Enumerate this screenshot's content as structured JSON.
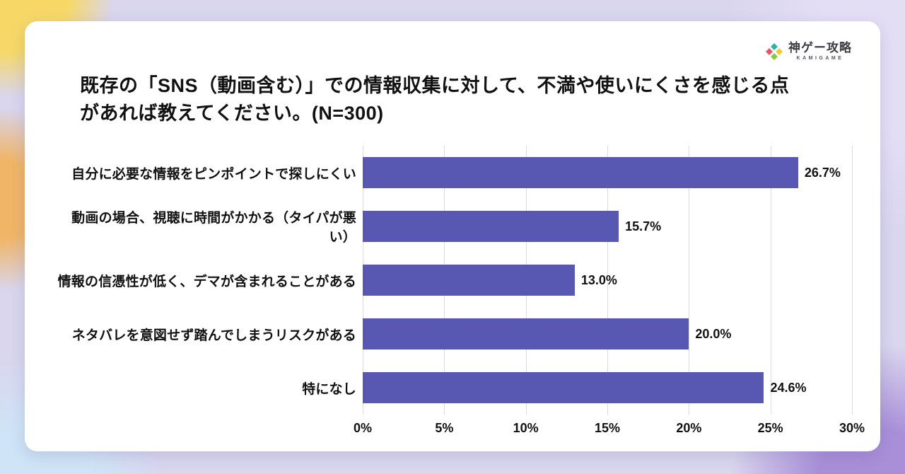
{
  "logo": {
    "name": "神ゲー攻略",
    "subtitle": "KAMIGAME"
  },
  "chart_data": {
    "type": "bar",
    "orientation": "horizontal",
    "title": "既存の「SNS（動画含む）」での情報収集に対して、不満や使いにくさを感じる点があれば教えてください。(N=300)",
    "categories": [
      "自分に必要な情報をピンポイントで探しにくい",
      "動画の場合、視聴に時間がかかる（タイパが悪い）",
      "情報の信憑性が低く、デマが含まれることがある",
      "ネタバレを意図せず踏んでしまうリスクがある",
      "特になし"
    ],
    "values": [
      26.7,
      15.7,
      13.0,
      20.0,
      24.6
    ],
    "value_labels": [
      "26.7%",
      "15.7%",
      "13.0%",
      "20.0%",
      "24.6%"
    ],
    "xlim": [
      0,
      30
    ],
    "x_ticks": [
      0,
      5,
      10,
      15,
      20,
      25,
      30
    ],
    "x_tick_labels": [
      "0%",
      "5%",
      "10%",
      "15%",
      "20%",
      "25%",
      "30%"
    ],
    "bar_color": "#5857b2",
    "grid": true,
    "legend": "none"
  }
}
